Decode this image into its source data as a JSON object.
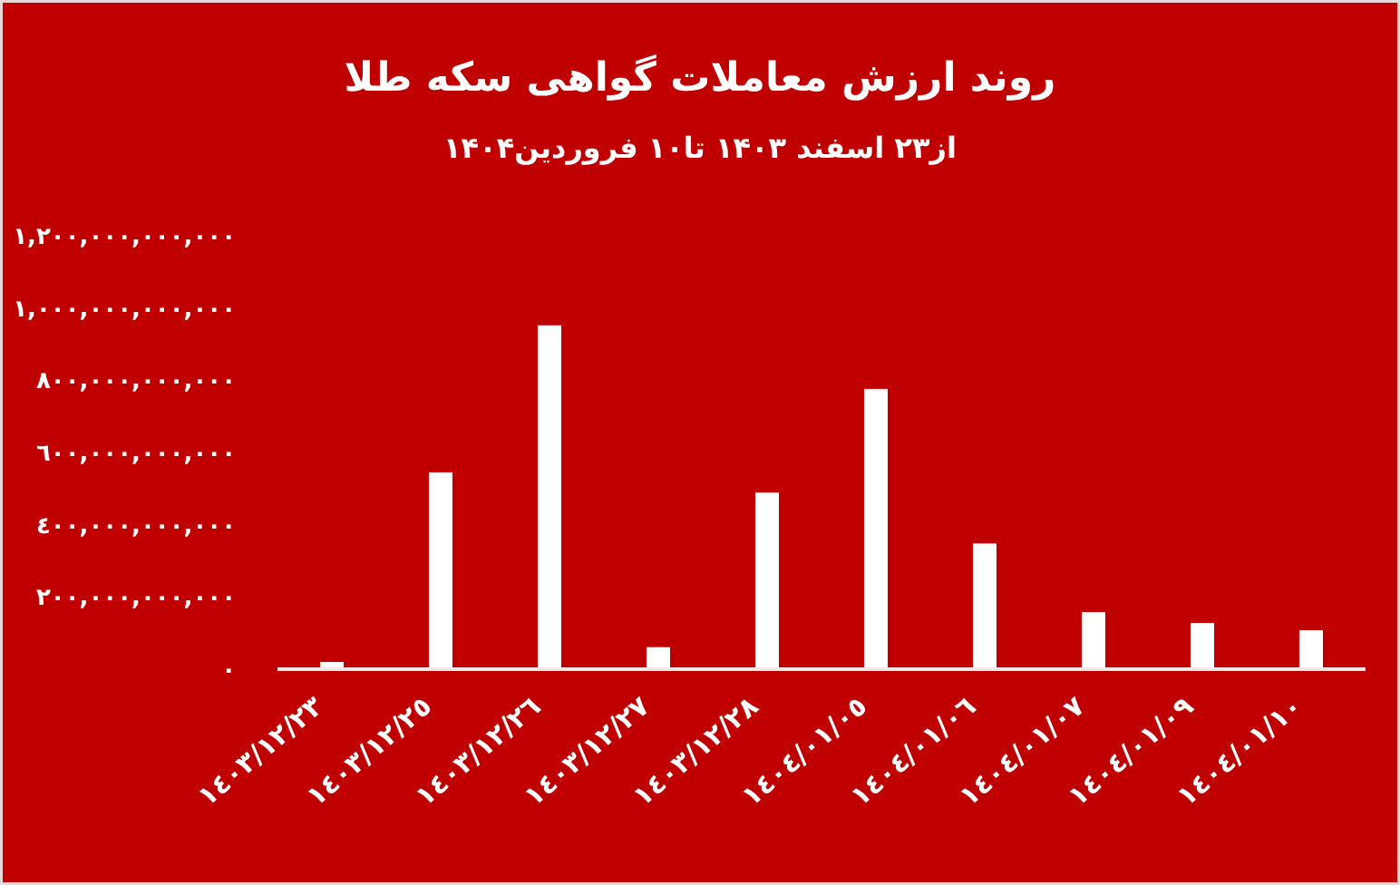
{
  "chart_data": {
    "type": "bar",
    "title": "روند ارزش معاملات گواهی سکه  طلا",
    "subtitle": "از۲۳ اسفند ۱۴۰۳ تا۱۰ فروردین۱۴۰۴",
    "categories": [
      "١٤٠٣/١٢/٢٣",
      "١٤٠٣/١٢/٢٥",
      "١٤٠٣/١٢/٢٦",
      "١٤٠٣/١٢/٢٧",
      "١٤٠٣/١٢/٢٨",
      "١٤٠٤/٠١/٠٥",
      "١٤٠٤/٠١/٠٦",
      "١٤٠٤/٠١/٠٧",
      "١٤٠٤/٠١/٠٩",
      "١٤٠٤/٠١/١٠"
    ],
    "values": [
      20000000000,
      545000000000,
      952000000000,
      61000000000,
      489000000000,
      776000000000,
      348000000000,
      158000000000,
      128000000000,
      108000000000
    ],
    "color": "#ffffff",
    "ylim": [
      0,
      1200000000000
    ],
    "yticks": [
      {
        "value": 0,
        "label": "٠"
      },
      {
        "value": 200000000000,
        "label": "٢٠٠,٠٠٠,٠٠٠,٠٠٠"
      },
      {
        "value": 400000000000,
        "label": "٤٠٠,٠٠٠,٠٠٠,٠٠٠"
      },
      {
        "value": 600000000000,
        "label": "٦٠٠,٠٠٠,٠٠٠,٠٠٠"
      },
      {
        "value": 800000000000,
        "label": "٨٠٠,٠٠٠,٠٠٠,٠٠٠"
      },
      {
        "value": 1000000000000,
        "label": "١,٠٠٠,٠٠٠,٠٠٠,٠٠٠"
      },
      {
        "value": 1200000000000,
        "label": "١,٢٠٠,٠٠٠,٠٠٠,٠٠٠"
      }
    ],
    "grid": false
  }
}
